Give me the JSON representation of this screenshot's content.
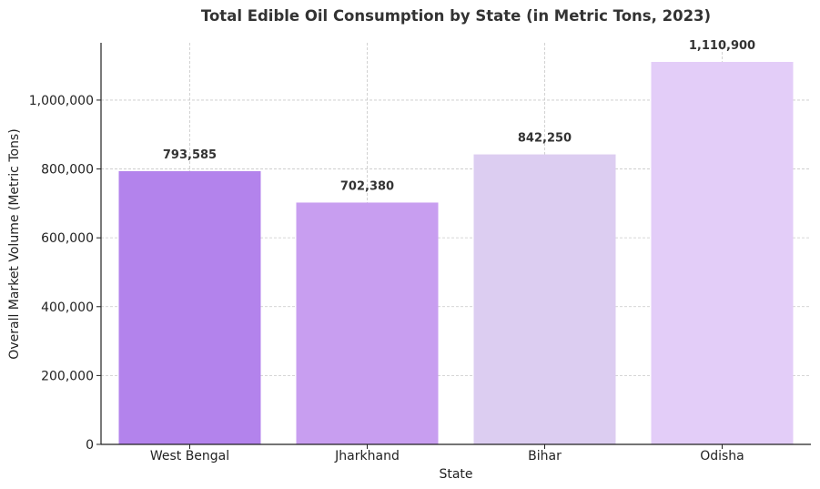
{
  "chart_data": {
    "type": "bar",
    "title": "Total Edible Oil Consumption by State (in Metric Tons, 2023)",
    "xlabel": "State",
    "ylabel": "Overall Market Volume (Metric Tons)",
    "categories": [
      "West Bengal",
      "Jharkhand",
      "Bihar",
      "Odisha"
    ],
    "values": [
      793585,
      702380,
      842250,
      1110900
    ],
    "value_labels": [
      "793,585",
      "702,380",
      "842,250",
      "1,110,900"
    ],
    "colors": [
      "#b383ec",
      "#c89ef0",
      "#dccdf1",
      "#e3cdf8"
    ],
    "ylim": [
      0,
      1166445
    ],
    "yticks": [
      0,
      200000,
      400000,
      600000,
      800000,
      1000000
    ],
    "ytick_labels": [
      "0",
      "200,000",
      "400,000",
      "600,000",
      "800,000",
      "1,000,000"
    ],
    "grid": true,
    "legend": "none"
  }
}
